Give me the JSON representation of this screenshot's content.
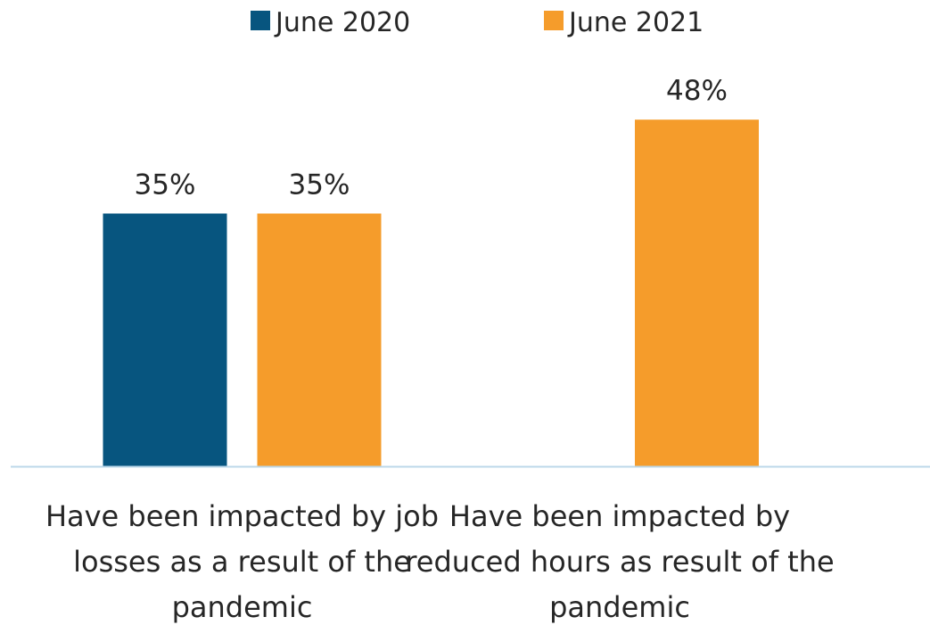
{
  "chart_data": {
    "type": "bar",
    "categories": [
      [
        "Have been impacted by job",
        "losses as a result of the",
        "pandemic"
      ],
      [
        "Have been impacted by",
        "reduced hours as result of the",
        "pandemic"
      ]
    ],
    "series": [
      {
        "name": "June 2020",
        "color": "#07557f",
        "values": [
          35,
          null
        ]
      },
      {
        "name": "June 2021",
        "color": "#f59c2b",
        "values": [
          35,
          48
        ]
      }
    ],
    "value_format": "{v}%",
    "ylim": [
      0,
      50
    ],
    "grid": false,
    "legend": "top-center",
    "axis_color": "#bcd8ea"
  }
}
